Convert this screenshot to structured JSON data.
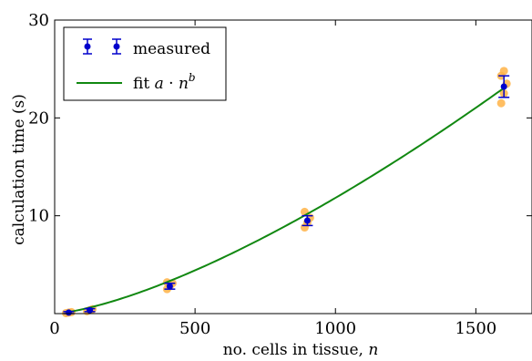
{
  "chart_data": {
    "type": "scatter",
    "title": "",
    "xlabel": "no. cells in tissue, ",
    "xlabel_var": "n",
    "ylabel": "calculation time (s)",
    "xlim": [
      0,
      1700
    ],
    "ylim": [
      0,
      30
    ],
    "xticks": [
      0,
      500,
      1000,
      1500
    ],
    "xtick_labels": [
      "0",
      "500",
      "1000",
      "1500"
    ],
    "yticks": [
      10,
      20,
      30
    ],
    "ytick_labels": [
      "10",
      "20",
      "30"
    ],
    "grid": false,
    "legend_position": "top-left",
    "legend": {
      "measured": "measured",
      "fit_prefix": "fit ",
      "fit_a": "a",
      "fit_dot": " · ",
      "fit_n": "n",
      "fit_b": "b"
    },
    "colors": {
      "measured": "#0000cc",
      "fit": "#118811",
      "raw": "#ffb347"
    },
    "measured": [
      {
        "x": 50,
        "y": 0.1,
        "err": 0.1
      },
      {
        "x": 125,
        "y": 0.35,
        "err": 0.15
      },
      {
        "x": 410,
        "y": 2.8,
        "err": 0.3
      },
      {
        "x": 900,
        "y": 9.5,
        "err": 0.5
      },
      {
        "x": 1600,
        "y": 23.2,
        "err": 1.1
      }
    ],
    "raw_samples": [
      {
        "x": 50,
        "y": [
          0.05,
          0.1,
          0.15
        ]
      },
      {
        "x": 125,
        "y": [
          0.25,
          0.35,
          0.45
        ]
      },
      {
        "x": 410,
        "y": [
          2.5,
          2.8,
          3.1,
          3.2
        ]
      },
      {
        "x": 900,
        "y": [
          8.8,
          9.3,
          9.8,
          10.4
        ]
      },
      {
        "x": 1600,
        "y": [
          21.5,
          22.5,
          23.5,
          24.3,
          24.8
        ]
      }
    ],
    "fit": {
      "a": 0.00065,
      "b": 1.42,
      "x_start": 40,
      "x_end": 1600
    }
  }
}
